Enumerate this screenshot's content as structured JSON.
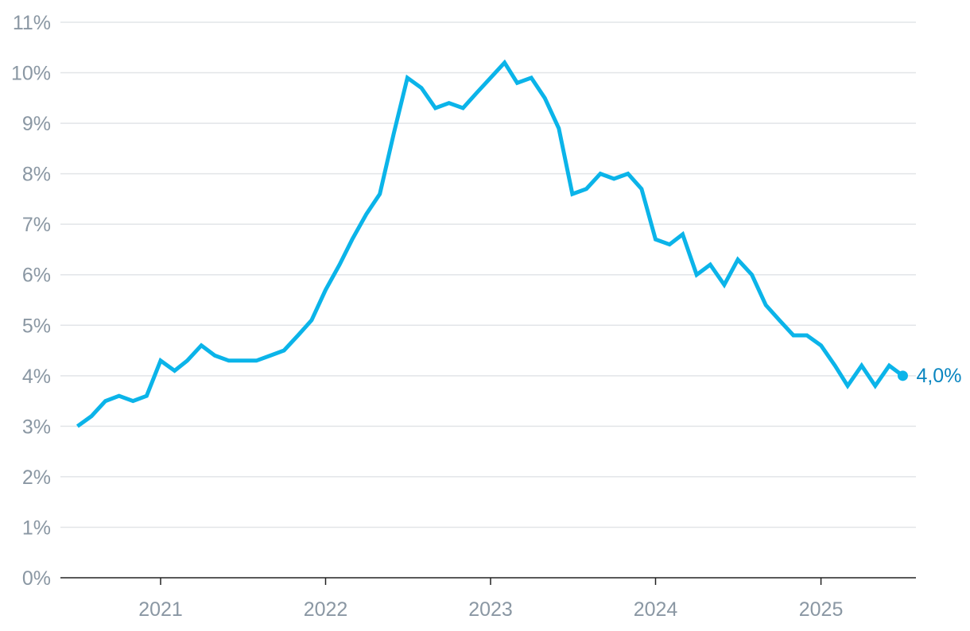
{
  "chart_data": {
    "type": "line",
    "title": "",
    "xlabel": "",
    "ylabel": "",
    "ylim": [
      0,
      11
    ],
    "y_ticks": [
      "0%",
      "1%",
      "2%",
      "3%",
      "4%",
      "5%",
      "6%",
      "7%",
      "8%",
      "9%",
      "10%",
      "11%"
    ],
    "x_ticks": [
      "2021",
      "2022",
      "2023",
      "2024",
      "2025"
    ],
    "grid": true,
    "series": [
      {
        "color": "#0bb4e9",
        "x": [
          "2020-07",
          "2020-08",
          "2020-09",
          "2020-10",
          "2020-11",
          "2020-12",
          "2021-01",
          "2021-02",
          "2021-03",
          "2021-04",
          "2021-05",
          "2021-06",
          "2021-07",
          "2021-08",
          "2021-09",
          "2021-10",
          "2021-11",
          "2021-12",
          "2022-01",
          "2022-02",
          "2022-03",
          "2022-04",
          "2022-05",
          "2022-06",
          "2022-07",
          "2022-08",
          "2022-09",
          "2022-10",
          "2022-11",
          "2022-12",
          "2023-01",
          "2023-02",
          "2023-03",
          "2023-04",
          "2023-05",
          "2023-06",
          "2023-07",
          "2023-08",
          "2023-09",
          "2023-10",
          "2023-11",
          "2023-12",
          "2024-01",
          "2024-02",
          "2024-03",
          "2024-04",
          "2024-05",
          "2024-06",
          "2024-07",
          "2024-08",
          "2024-09",
          "2024-10",
          "2024-11",
          "2024-12",
          "2025-01",
          "2025-02",
          "2025-03",
          "2025-04",
          "2025-05",
          "2025-06",
          "2025-07"
        ],
        "values": [
          3.0,
          3.2,
          3.5,
          3.6,
          3.5,
          3.6,
          4.3,
          4.1,
          4.3,
          4.6,
          4.4,
          4.3,
          4.3,
          4.3,
          4.4,
          4.5,
          4.8,
          5.1,
          5.7,
          6.2,
          6.7,
          7.2,
          7.6,
          8.8,
          9.9,
          9.7,
          9.3,
          9.4,
          9.3,
          9.6,
          9.9,
          10.2,
          9.8,
          9.9,
          9.5,
          8.9,
          7.6,
          7.7,
          8.0,
          7.9,
          8.0,
          7.7,
          6.7,
          6.6,
          6.8,
          6.0,
          6.2,
          5.8,
          6.3,
          6.0,
          5.4,
          5.1,
          4.8,
          4.8,
          4.6,
          4.2,
          3.8,
          4.2,
          3.8,
          4.2,
          4.0
        ]
      }
    ],
    "end_label": {
      "text": "4,0%",
      "color": "#0a86c0"
    }
  }
}
